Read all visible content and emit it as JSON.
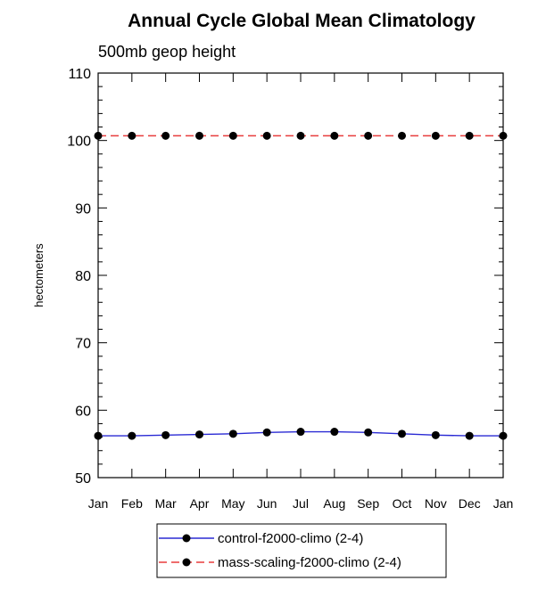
{
  "chart_data": {
    "type": "line",
    "title": "Annual Cycle Global Mean Climatology",
    "subtitle": "500mb geop height",
    "xlabel": "",
    "ylabel": "hectometers",
    "ylim": [
      50,
      110
    ],
    "yticks": [
      "50",
      "60",
      "70",
      "80",
      "90",
      "100",
      "110"
    ],
    "categories": [
      "Jan",
      "Feb",
      "Mar",
      "Apr",
      "May",
      "Jun",
      "Jul",
      "Aug",
      "Sep",
      "Oct",
      "Nov",
      "Dec",
      "Jan"
    ],
    "series": [
      {
        "name": "control-f2000-climo (2-4)",
        "color": "#2a2ad4",
        "dash": "solid",
        "values": [
          56.2,
          56.2,
          56.3,
          56.4,
          56.5,
          56.7,
          56.8,
          56.8,
          56.7,
          56.5,
          56.3,
          56.2,
          56.2
        ]
      },
      {
        "name": "mass-scaling-f2000-climo (2-4)",
        "color": "#e83c3c",
        "dash": "dashed",
        "values": [
          100.7,
          100.7,
          100.7,
          100.7,
          100.7,
          100.7,
          100.7,
          100.7,
          100.7,
          100.7,
          100.7,
          100.7,
          100.7
        ]
      }
    ],
    "grid": false,
    "legend_position": "bottom"
  }
}
